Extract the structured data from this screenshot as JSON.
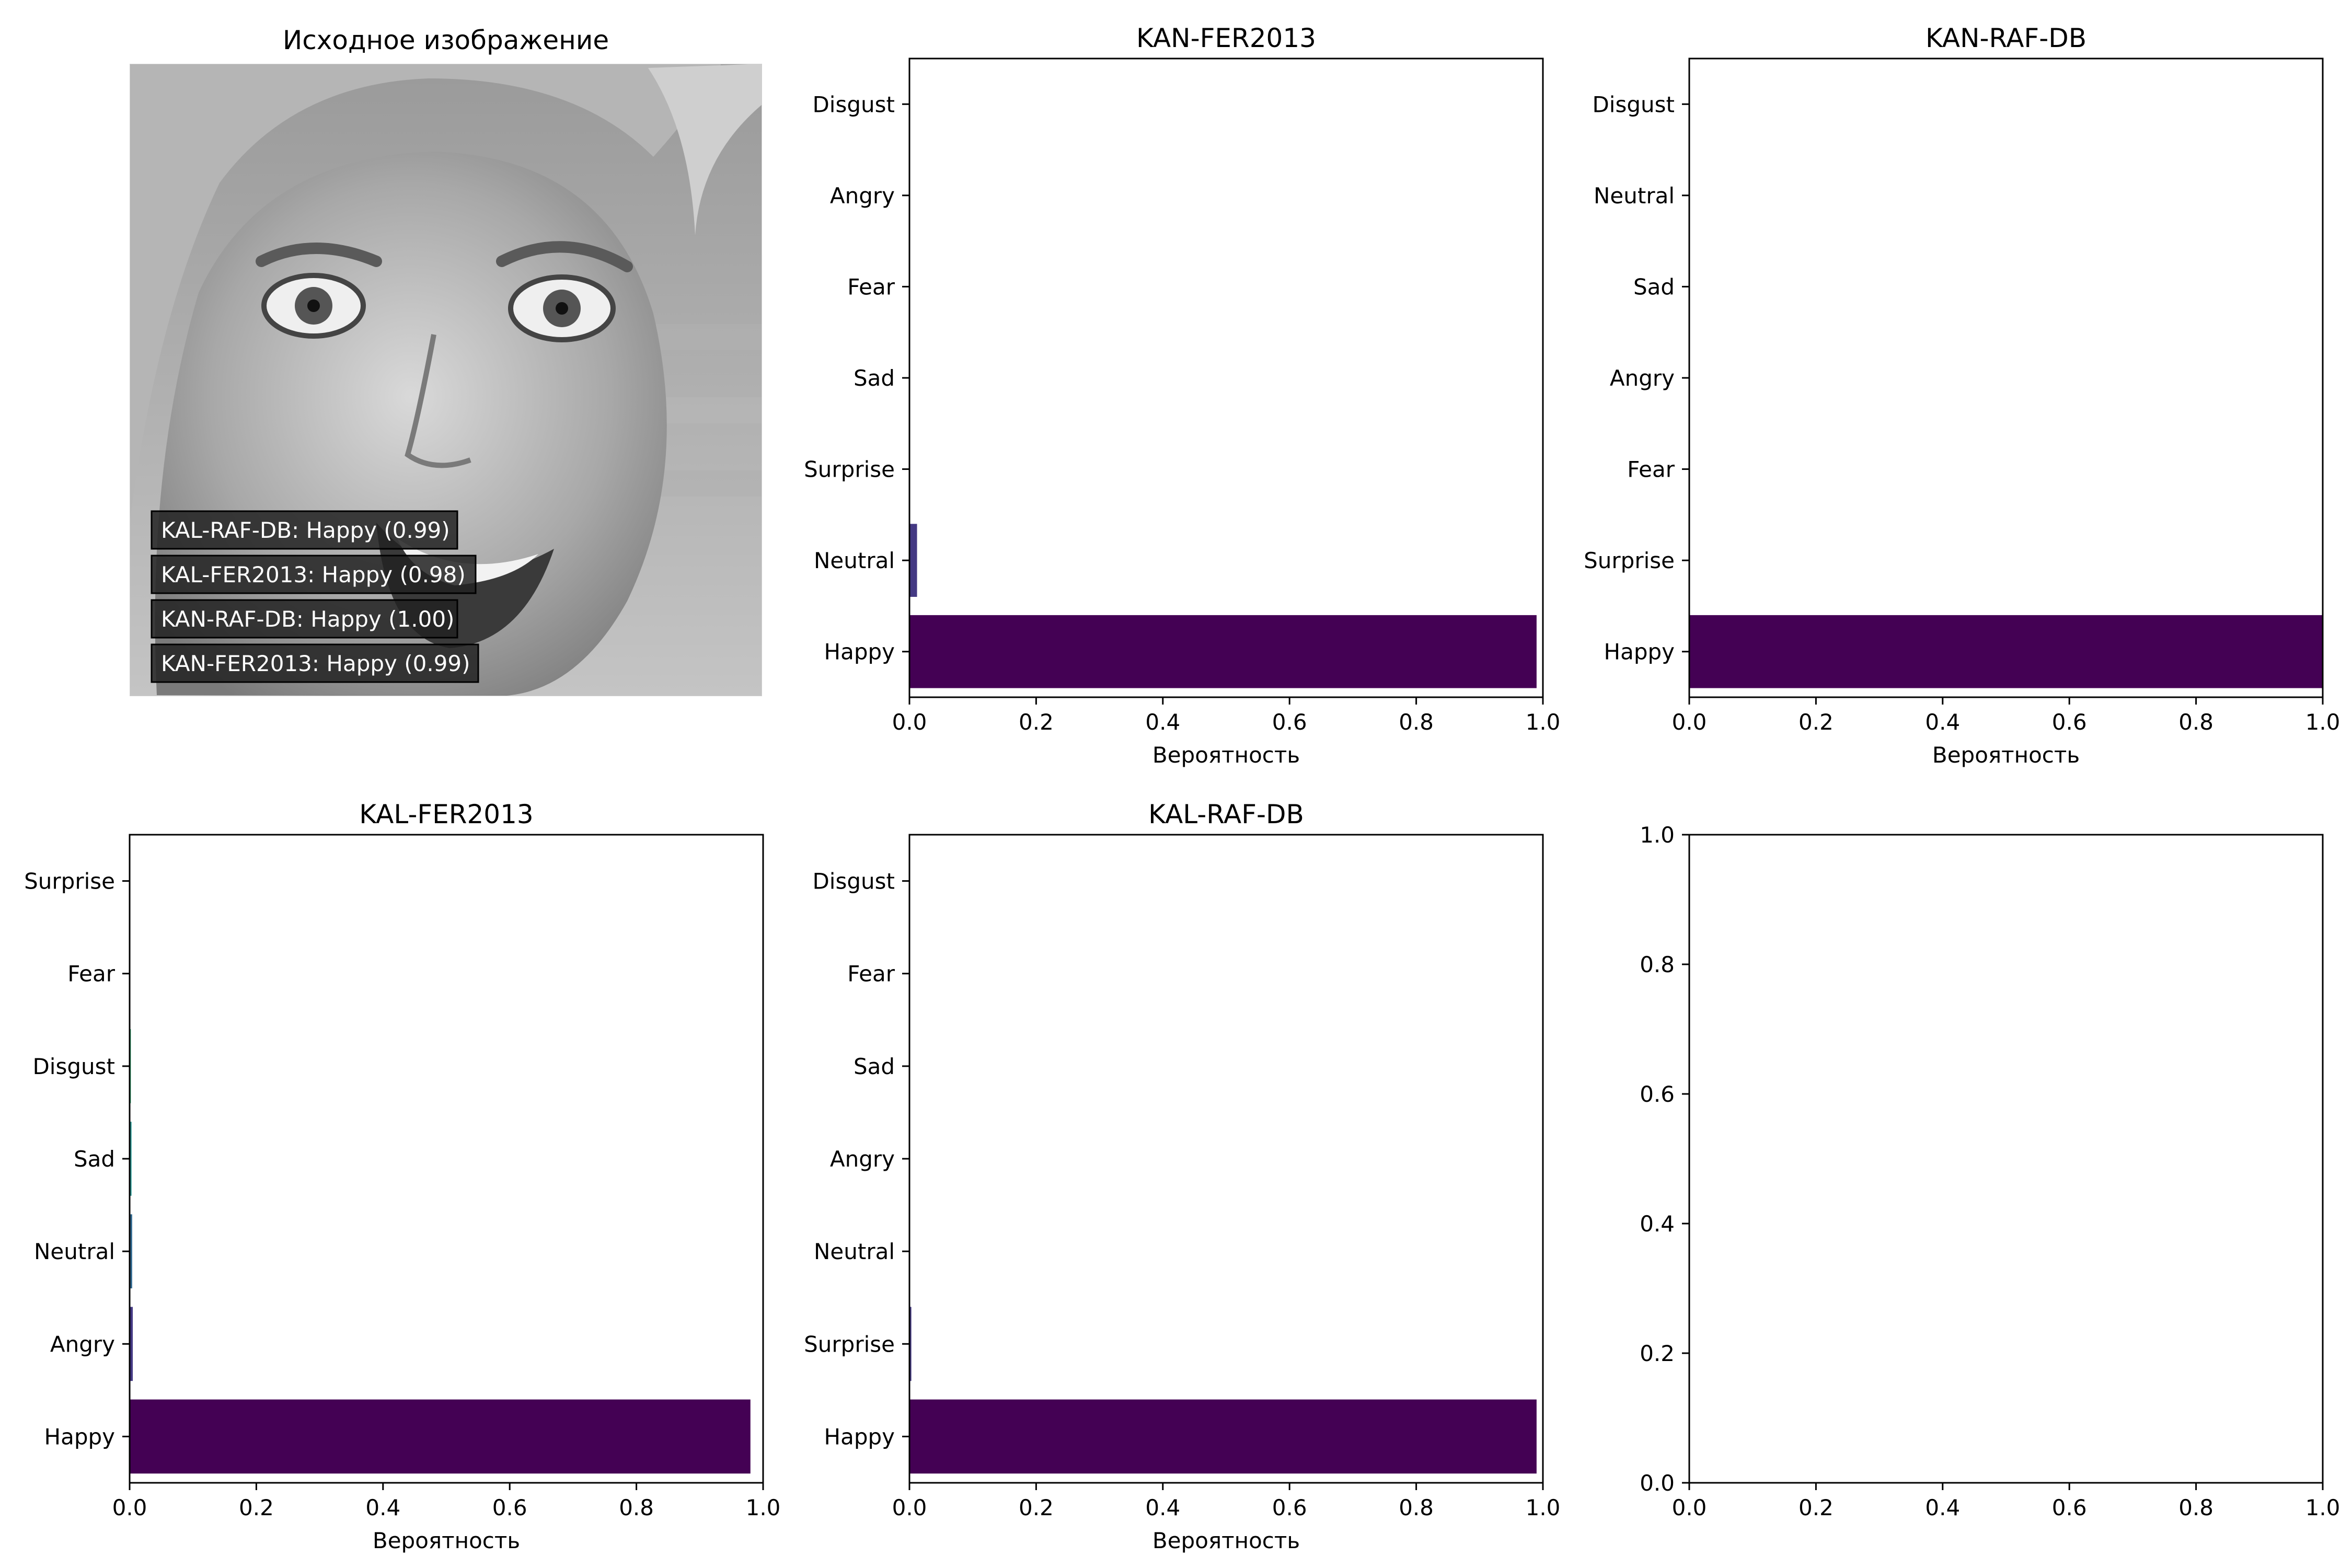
{
  "image_panel": {
    "title": "Исходное изображение",
    "annotations": [
      "KAL-RAF-DB: Happy (0.99)",
      "KAL-FER2013: Happy (0.98)",
      "KAN-RAF-DB: Happy (1.00)",
      "KAN-FER2013: Happy (0.99)"
    ]
  },
  "chart_data": [
    {
      "type": "bar",
      "orientation": "horizontal",
      "title": "KAN-FER2013",
      "xlabel": "Вероятность",
      "ylabel": "",
      "xlim": [
        0,
        1
      ],
      "xticks": [
        0,
        0.2,
        0.4,
        0.6,
        0.8,
        1
      ],
      "categories": [
        "Happy",
        "Neutral",
        "Surprise",
        "Sad",
        "Fear",
        "Angry",
        "Disgust"
      ],
      "values": [
        0.99,
        0.012,
        0.0,
        0.0,
        0.0,
        0.0,
        0.0
      ],
      "colors": [
        "#440154",
        "#443983",
        "#31688e",
        "#21918c",
        "#35b779",
        "#90d743",
        "#fde725"
      ]
    },
    {
      "type": "bar",
      "orientation": "horizontal",
      "title": "KAN-RAF-DB",
      "xlabel": "Вероятность",
      "ylabel": "",
      "xlim": [
        0,
        1
      ],
      "xticks": [
        0,
        0.2,
        0.4,
        0.6,
        0.8,
        1
      ],
      "categories": [
        "Happy",
        "Surprise",
        "Fear",
        "Angry",
        "Sad",
        "Neutral",
        "Disgust"
      ],
      "values": [
        1.0,
        0.0,
        0.0,
        0.0,
        0.0,
        0.0,
        0.0
      ],
      "colors": [
        "#440154",
        "#443983",
        "#31688e",
        "#21918c",
        "#35b779",
        "#90d743",
        "#fde725"
      ]
    },
    {
      "type": "bar",
      "orientation": "horizontal",
      "title": "KAL-FER2013",
      "xlabel": "Вероятность",
      "ylabel": "",
      "xlim": [
        0,
        1
      ],
      "xticks": [
        0,
        0.2,
        0.4,
        0.6,
        0.8,
        1
      ],
      "categories": [
        "Happy",
        "Angry",
        "Neutral",
        "Sad",
        "Disgust",
        "Fear",
        "Surprise"
      ],
      "values": [
        0.98,
        0.005,
        0.004,
        0.003,
        0.002,
        0.001,
        0.001
      ],
      "colors": [
        "#440154",
        "#443983",
        "#31688e",
        "#21918c",
        "#35b779",
        "#90d743",
        "#fde725"
      ]
    },
    {
      "type": "bar",
      "orientation": "horizontal",
      "title": "KAL-RAF-DB",
      "xlabel": "Вероятность",
      "ylabel": "",
      "xlim": [
        0,
        1
      ],
      "xticks": [
        0,
        0.2,
        0.4,
        0.6,
        0.8,
        1
      ],
      "categories": [
        "Happy",
        "Surprise",
        "Neutral",
        "Angry",
        "Sad",
        "Fear",
        "Disgust"
      ],
      "values": [
        0.99,
        0.003,
        0.001,
        0.0,
        0.0,
        0.0,
        0.0
      ],
      "colors": [
        "#440154",
        "#443983",
        "#31688e",
        "#21918c",
        "#35b779",
        "#90d743",
        "#fde725"
      ]
    },
    {
      "type": "empty",
      "title": "",
      "xlim": [
        0,
        1
      ],
      "ylim": [
        0,
        1
      ],
      "xticks": [
        0,
        0.2,
        0.4,
        0.6,
        0.8,
        1
      ],
      "yticks": [
        0,
        0.2,
        0.4,
        0.6,
        0.8,
        1
      ]
    }
  ]
}
